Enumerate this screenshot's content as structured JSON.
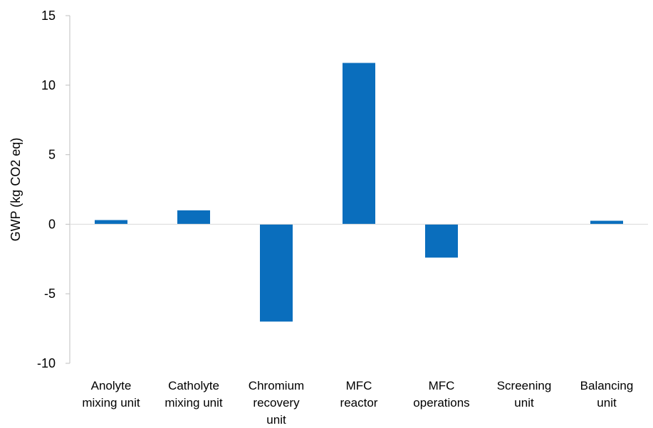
{
  "chart_data": {
    "type": "bar",
    "title": "",
    "xlabel": "",
    "ylabel": "GWP (kg CO2 eq)",
    "ylim": [
      -10,
      15
    ],
    "yticks": [
      "-10",
      "-5",
      "0",
      "5",
      "10",
      "15"
    ],
    "grid": false,
    "legend": "none",
    "bar_color": "#0a6ebd",
    "categories": [
      [
        "Anolyte",
        "mixing unit"
      ],
      [
        "Catholyte",
        "mixing unit"
      ],
      [
        "Chromium",
        "recovery",
        "unit"
      ],
      [
        "MFC",
        "reactor"
      ],
      [
        "MFC",
        "operations"
      ],
      [
        "Screening",
        "unit"
      ],
      [
        "Balancing",
        "unit"
      ]
    ],
    "values": [
      0.3,
      1.0,
      -7.0,
      11.6,
      -2.4,
      0.0,
      0.25
    ]
  }
}
